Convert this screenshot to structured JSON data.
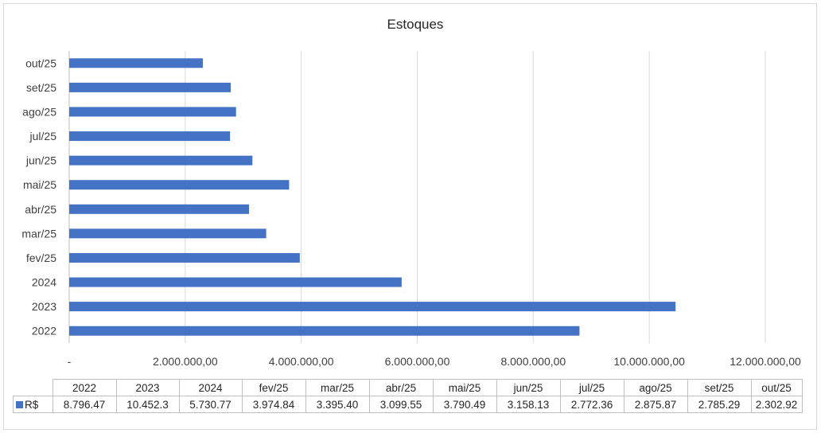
{
  "chart_data": {
    "type": "bar",
    "orientation": "horizontal",
    "title": "Estoques",
    "categories": [
      "2022",
      "2023",
      "2024",
      "fev/25",
      "mar/25",
      "abr/25",
      "mai/25",
      "jun/25",
      "jul/25",
      "ago/25",
      "set/25",
      "out/25"
    ],
    "series": [
      {
        "name": "R$",
        "values": [
          8796470,
          10452300,
          5730770,
          3974840,
          3395400,
          3099550,
          3790490,
          3158130,
          2772360,
          2875870,
          2785290,
          2302920
        ],
        "table_values": [
          "8.796.47",
          "10.452.3",
          "5.730.77",
          "3.974.84",
          "3.395.40",
          "3.099.55",
          "3.790.49",
          "3.158.13",
          "2.772.36",
          "2.875.87",
          "2.785.29",
          "2.302.92"
        ],
        "color": "#4472c4"
      }
    ],
    "xlim": [
      0,
      12000000
    ],
    "x_ticks": [
      0,
      2000000,
      4000000,
      6000000,
      8000000,
      10000000,
      12000000
    ],
    "x_tick_labels": [
      "-",
      "2.000.000,00",
      "4.000.000,00",
      "6.000.000,00",
      "8.000.000,00",
      "10.000.000,00",
      "12.000.000,00"
    ],
    "grid": true,
    "legend": "data-table",
    "data_table": true
  }
}
